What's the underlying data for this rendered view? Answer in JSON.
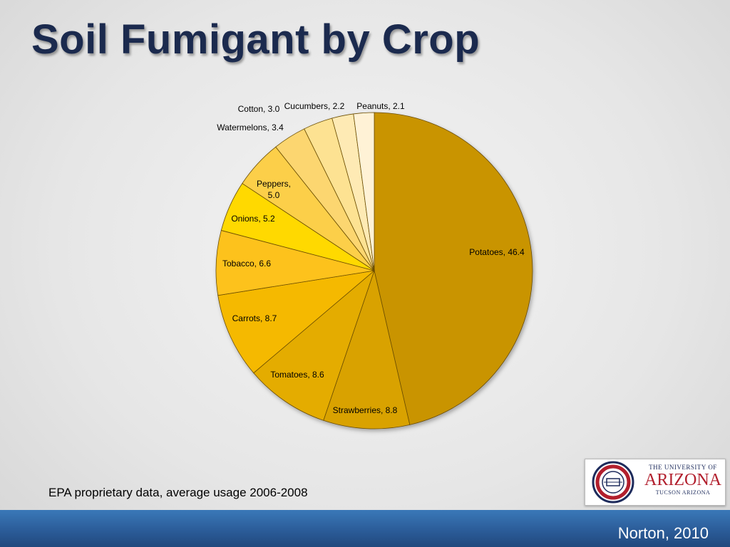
{
  "slide": {
    "title": "Soil Fumigant by Crop",
    "source_note": "EPA proprietary data, average usage 2006-2008",
    "footer": "Norton, 2010"
  },
  "logo": {
    "line1": "THE UNIVERSITY OF",
    "line2": "ARIZONA",
    "line3": "TUCSON ARIZONA"
  },
  "chart_data": {
    "type": "pie",
    "categories": [
      "Potatoes",
      "Strawberries",
      "Tomatoes",
      "Carrots",
      "Tobacco",
      "Onions",
      "Peppers",
      "Watermelons",
      "Cotton",
      "Cucumbers",
      "Peanuts"
    ],
    "values": [
      46.4,
      8.8,
      8.6,
      8.7,
      6.6,
      5.2,
      5.0,
      3.4,
      3.0,
      2.2,
      2.1
    ],
    "labels": [
      "Potatoes, 46.4",
      "Strawberries, 8.8",
      "Tomatoes, 8.6",
      "Carrots, 8.7",
      "Tobacco, 6.6",
      "Onions, 5.2",
      "Peppers, 5.0",
      "Watermelons, 3.4",
      "Cotton, 3.0",
      "Cucumbers, 2.2",
      "Peanuts, 2.1"
    ],
    "colors": [
      "#c99400",
      "#d9a200",
      "#e4ac00",
      "#f5b900",
      "#fdc21c",
      "#ffd900",
      "#fccf4a",
      "#fcd670",
      "#fde292",
      "#feeab4",
      "#fff2d6"
    ],
    "start_angle": "12 o'clock, clockwise"
  }
}
